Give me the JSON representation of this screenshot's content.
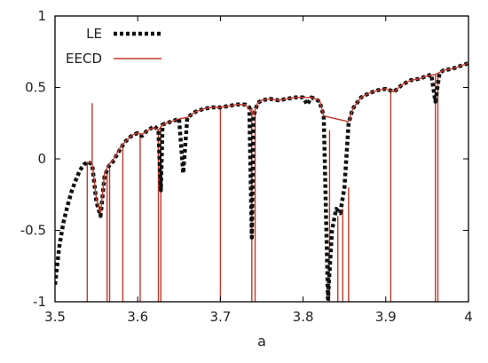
{
  "chart_data": {
    "type": "line",
    "title": "",
    "xlabel": "a",
    "ylabel": "",
    "xlim": [
      3.5,
      4.0
    ],
    "ylim": [
      -1,
      1
    ],
    "x_ticks": [
      "3.5",
      "3.6",
      "3.7",
      "3.8",
      "3.9",
      "4"
    ],
    "y_ticks": [
      "-1",
      "-0.5",
      "0",
      "0.5",
      "1"
    ],
    "x_tick_values": [
      3.5,
      3.6,
      3.7,
      3.8,
      3.9,
      4.0
    ],
    "y_tick_values": [
      -1,
      -0.5,
      0,
      0.5,
      1
    ],
    "grid": false,
    "legend_position": "top-left",
    "series": [
      {
        "name": "LE",
        "style": "dotted",
        "color": "#111111",
        "x": [
          3.5,
          3.505,
          3.51,
          3.515,
          3.52,
          3.525,
          3.53,
          3.535,
          3.54,
          3.545,
          3.55,
          3.555,
          3.56,
          3.565,
          3.57,
          3.575,
          3.58,
          3.585,
          3.59,
          3.595,
          3.6,
          3.605,
          3.61,
          3.615,
          3.62,
          3.625,
          3.628,
          3.63,
          3.635,
          3.64,
          3.65,
          3.655,
          3.66,
          3.665,
          3.67,
          3.68,
          3.69,
          3.7,
          3.71,
          3.72,
          3.73,
          3.735,
          3.738,
          3.74,
          3.745,
          3.75,
          3.76,
          3.77,
          3.78,
          3.79,
          3.8,
          3.805,
          3.81,
          3.815,
          3.82,
          3.825,
          3.83,
          3.835,
          3.84,
          3.845,
          3.85,
          3.855,
          3.86,
          3.87,
          3.88,
          3.89,
          3.9,
          3.91,
          3.92,
          3.93,
          3.94,
          3.95,
          3.955,
          3.96,
          3.965,
          3.97,
          3.98,
          3.99,
          4.0
        ],
        "y": [
          -0.88,
          -0.62,
          -0.45,
          -0.33,
          -0.23,
          -0.15,
          -0.08,
          -0.04,
          -0.02,
          -0.04,
          -0.3,
          -0.4,
          -0.12,
          -0.05,
          -0.02,
          0.03,
          0.08,
          0.12,
          0.15,
          0.17,
          0.18,
          0.16,
          0.19,
          0.21,
          0.23,
          0.2,
          -0.22,
          0.24,
          0.25,
          0.26,
          0.28,
          -0.1,
          0.29,
          0.31,
          0.33,
          0.35,
          0.36,
          0.36,
          0.37,
          0.38,
          0.38,
          0.36,
          -0.55,
          0.3,
          0.39,
          0.41,
          0.42,
          0.41,
          0.42,
          0.43,
          0.43,
          0.38,
          0.43,
          0.42,
          0.4,
          0.3,
          -0.98,
          -0.5,
          -0.35,
          -0.38,
          -0.2,
          0.25,
          0.35,
          0.43,
          0.46,
          0.48,
          0.49,
          0.47,
          0.52,
          0.55,
          0.56,
          0.58,
          0.59,
          0.4,
          0.6,
          0.62,
          0.63,
          0.65,
          0.67
        ]
      },
      {
        "name": "EECD",
        "style": "solid",
        "color": "#c0392b",
        "x": [
          3.54,
          3.545,
          3.55,
          3.555,
          3.56,
          3.565,
          3.57,
          3.575,
          3.58,
          3.585,
          3.59,
          3.595,
          3.6,
          3.605,
          3.61,
          3.615,
          3.62,
          3.625,
          3.63,
          3.635,
          3.64,
          3.65,
          3.66,
          3.67,
          3.68,
          3.69,
          3.7,
          3.71,
          3.72,
          3.73,
          3.74,
          3.745,
          3.75,
          3.76,
          3.77,
          3.78,
          3.79,
          3.8,
          3.81,
          3.82,
          3.825,
          3.855,
          3.86,
          3.87,
          3.88,
          3.89,
          3.9,
          3.91,
          3.92,
          3.93,
          3.94,
          3.95,
          3.96,
          3.97,
          3.98,
          3.99,
          4.0
        ],
        "y": [
          -0.02,
          -0.03,
          -0.28,
          -0.38,
          -0.1,
          -0.04,
          -0.01,
          0.04,
          0.09,
          0.12,
          0.15,
          0.17,
          0.18,
          0.17,
          0.19,
          0.21,
          0.22,
          0.2,
          0.24,
          0.25,
          0.26,
          0.28,
          0.29,
          0.33,
          0.35,
          0.36,
          0.36,
          0.37,
          0.38,
          0.38,
          0.31,
          0.39,
          0.41,
          0.42,
          0.41,
          0.42,
          0.43,
          0.43,
          0.43,
          0.41,
          0.3,
          0.26,
          0.35,
          0.43,
          0.46,
          0.48,
          0.49,
          0.47,
          0.52,
          0.55,
          0.56,
          0.58,
          0.59,
          0.62,
          0.63,
          0.65,
          0.67
        ],
        "spikes": [
          {
            "x": 3.539,
            "from": -0.02,
            "to": -1.0
          },
          {
            "x": 3.545,
            "from": -0.02,
            "to": 0.39
          },
          {
            "x": 3.563,
            "from": -0.08,
            "to": -1.0
          },
          {
            "x": 3.566,
            "from": -0.05,
            "to": -1.0
          },
          {
            "x": 3.582,
            "from": 0.09,
            "to": -1.0
          },
          {
            "x": 3.603,
            "from": 0.18,
            "to": -1.0
          },
          {
            "x": 3.625,
            "from": 0.2,
            "to": -1.0
          },
          {
            "x": 3.628,
            "from": 0.23,
            "to": -1.0
          },
          {
            "x": 3.632,
            "from": 0.24,
            "to": 0.26
          },
          {
            "x": 3.7,
            "from": 0.36,
            "to": -1.0
          },
          {
            "x": 3.738,
            "from": 0.36,
            "to": -1.0
          },
          {
            "x": 3.742,
            "from": 0.33,
            "to": -1.0
          },
          {
            "x": 3.832,
            "from": 0.2,
            "to": -1.0
          },
          {
            "x": 3.842,
            "from": -0.4,
            "to": -1.0
          },
          {
            "x": 3.848,
            "from": -0.35,
            "to": -1.0
          },
          {
            "x": 3.855,
            "from": -0.2,
            "to": -1.0
          },
          {
            "x": 3.906,
            "from": 0.49,
            "to": -1.0
          },
          {
            "x": 3.96,
            "from": 0.59,
            "to": -1.0
          },
          {
            "x": 3.963,
            "from": 0.58,
            "to": -1.0
          }
        ]
      }
    ]
  }
}
